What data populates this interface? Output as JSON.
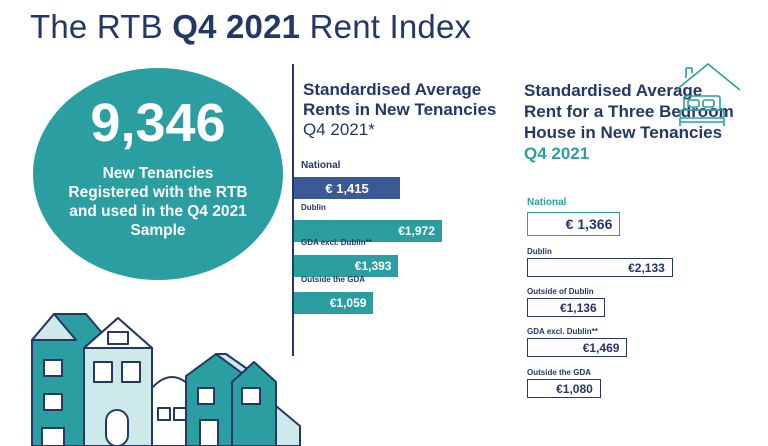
{
  "title": {
    "prefix": "The RTB",
    "bold": "Q4 2021",
    "suffix": "Rent Index"
  },
  "headline": {
    "number": "9,346",
    "text": "New Tenancies Registered with the RTB and used in the Q4 2021 Sample"
  },
  "section_rents": {
    "title": "Standardised Average Rents in New Tenancies",
    "subtitle": "Q4 2021*"
  },
  "section_three_bed": {
    "title": "Standardised Average Rent for a Three Bedroom House in New Tenancies",
    "subtitle": "Q4 2021"
  },
  "icons": {
    "bed_house": "house-bed-icon",
    "houses": "houses-illustration"
  },
  "colors": {
    "navy": "#233768",
    "teal": "#2a9ea1",
    "national_bar": "#3b5997",
    "light_teal": "#cde9ea"
  },
  "chart_data": [
    {
      "type": "bar",
      "orientation": "horizontal",
      "title": "Standardised Average Rents in New Tenancies Q4 2021*",
      "categories": [
        "National",
        "Dublin",
        "GDA excl. Dublin**",
        "Outside the GDA"
      ],
      "values": [
        1415,
        1972,
        1393,
        1059
      ],
      "value_labels": [
        "€ 1,415",
        "€1,972",
        "€1,393",
        "€1,059"
      ],
      "xlim": [
        0,
        2000
      ]
    },
    {
      "type": "bar",
      "orientation": "horizontal",
      "title": "Standardised Average Rent for a Three Bedroom House in New Tenancies Q4 2021",
      "categories": [
        "National",
        "Dublin",
        "Outside of Dublin",
        "GDA excl. Dublin**",
        "Outside the GDA"
      ],
      "values": [
        1366,
        2133,
        1136,
        1469,
        1080
      ],
      "value_labels": [
        "€ 1,366",
        "€2,133",
        "€1,136",
        "€1,469",
        "€1,080"
      ],
      "xlim": [
        0,
        2150
      ]
    }
  ]
}
